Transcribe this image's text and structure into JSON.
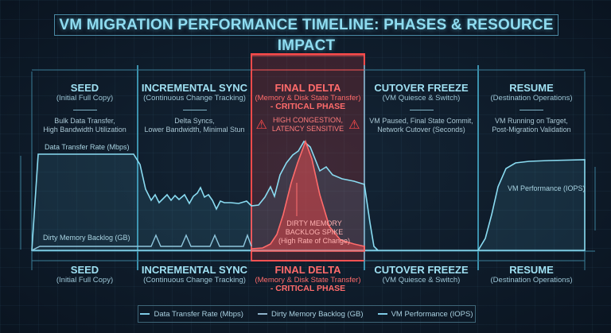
{
  "title": "VM MIGRATION PERFORMANCE TIMELINE:  PHASES & RESOURCE IMPACT",
  "phases": [
    {
      "name": "SEED",
      "sub": "(Initial Full Copy)",
      "desc1": "Bulk Data Transfer,",
      "desc2": "High Bandwidth Utilization"
    },
    {
      "name": "INCREMENTAL SYNC",
      "sub": "(Continuous Change Tracking)",
      "desc1": "Delta Syncs,",
      "desc2": "Lower Bandwidth, Minimal Stun"
    },
    {
      "name": "FINAL DELTA",
      "sub": "(Memory & Disk State Transfer)",
      "critical": "- CRITICAL PHASE",
      "warn1": "HIGH CONGESTION,",
      "warn2": "LATENCY SENSITIVE"
    },
    {
      "name": "CUTOVER FREEZE",
      "sub": "(VM Quiesce & Switch)",
      "desc1": "VM Paused, Final State Commit,",
      "desc2": "Network Cutover (Seconds)"
    },
    {
      "name": "RESUME",
      "sub": "(Destination Operations)",
      "desc1": "VM Running on Target,",
      "desc2": "Post-Migration Validation"
    }
  ],
  "labels": {
    "transfer": "Data Transfer Rate (Mbps)",
    "dirty": "Dirty Memory Backlog (GB)",
    "vmperf": "VM Performance (IOPS)",
    "spike1": "DIRTY MEMORY",
    "spike2": "BACKLOG SPIKE",
    "spike3": "(High Rate of Change)"
  },
  "legend": [
    "Data Transfer Rate (Mbps)",
    "Dirty Memory Backlog (GB)",
    "VM Performance (IOPS)"
  ],
  "colors": {
    "accent": "#6fd6f2",
    "critical": "#ff4545",
    "background": "#0d1824"
  }
}
